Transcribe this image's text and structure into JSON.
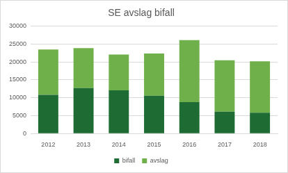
{
  "chart_data": {
    "type": "bar",
    "title": "SE avslag bifall",
    "categories": [
      "2012",
      "2013",
      "2014",
      "2015",
      "2016",
      "2017",
      "2018"
    ],
    "series": [
      {
        "name": "bifall",
        "color": "#1e6b34",
        "values": [
          10800,
          12700,
          12100,
          10600,
          8800,
          6100,
          5800
        ]
      },
      {
        "name": "avslag",
        "color": "#6fb04a",
        "values": [
          12700,
          11200,
          10000,
          11800,
          17300,
          14400,
          14400
        ]
      }
    ],
    "ylim": [
      0,
      30000
    ],
    "yticks": [
      0,
      5000,
      10000,
      15000,
      20000,
      25000,
      30000
    ],
    "grid": true,
    "stacked": true,
    "legend": "bottom"
  }
}
